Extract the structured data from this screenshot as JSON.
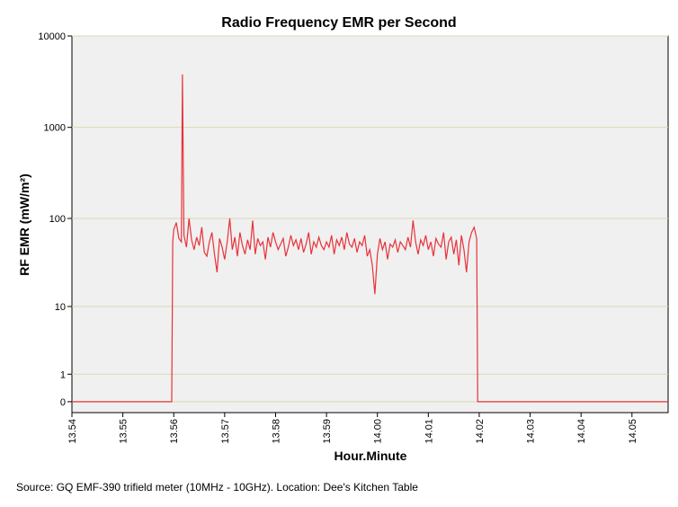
{
  "chart_data": {
    "type": "line",
    "title": "Radio Frequency EMR per Second",
    "x_label": "Hour.Minute",
    "y_label": "RF EMR (mW/m²)",
    "source": "Source: GQ EMF-390 trifield meter (10MHz - 10GHz). Location: Dee's Kitchen Table",
    "yscale": "log1p",
    "grid": true,
    "xlim": [
      834,
      845.71
    ],
    "ylim": [
      -0.24,
      10000
    ],
    "xticks": [
      {
        "value": 834,
        "label": "13.54"
      },
      {
        "value": 835,
        "label": "13.55"
      },
      {
        "value": 836,
        "label": "13.56"
      },
      {
        "value": 837,
        "label": "13.57"
      },
      {
        "value": 838,
        "label": "13.58"
      },
      {
        "value": 839,
        "label": "13.59"
      },
      {
        "value": 840,
        "label": "14.00"
      },
      {
        "value": 841,
        "label": "14.01"
      },
      {
        "value": 842,
        "label": "14.02"
      },
      {
        "value": 843,
        "label": "14.03"
      },
      {
        "value": 844,
        "label": "14.04"
      },
      {
        "value": 845,
        "label": "14.05"
      }
    ],
    "yticks": [
      0,
      1,
      10,
      100,
      1000,
      10000
    ],
    "series": [
      {
        "name": "RF EMR",
        "color": "#e8323a",
        "x": [
          834,
          835.96,
          835.98,
          836,
          836.05,
          836.1,
          836.15,
          836.17,
          836.2,
          836.25,
          836.3,
          836.35,
          836.4,
          836.45,
          836.5,
          836.55,
          836.6,
          836.65,
          836.7,
          836.75,
          836.8,
          836.85,
          836.9,
          836.95,
          837,
          837.05,
          837.1,
          837.15,
          837.2,
          837.25,
          837.3,
          837.35,
          837.4,
          837.45,
          837.5,
          837.55,
          837.6,
          837.65,
          837.7,
          837.75,
          837.8,
          837.85,
          837.9,
          837.95,
          838,
          838.05,
          838.1,
          838.15,
          838.2,
          838.25,
          838.3,
          838.35,
          838.4,
          838.45,
          838.5,
          838.55,
          838.6,
          838.65,
          838.7,
          838.75,
          838.8,
          838.85,
          838.9,
          838.95,
          839,
          839.05,
          839.1,
          839.15,
          839.2,
          839.25,
          839.3,
          839.35,
          839.4,
          839.45,
          839.5,
          839.55,
          839.6,
          839.65,
          839.7,
          839.75,
          839.8,
          839.85,
          839.9,
          839.95,
          840,
          840.05,
          840.1,
          840.15,
          840.2,
          840.25,
          840.3,
          840.35,
          840.4,
          840.45,
          840.5,
          840.55,
          840.6,
          840.65,
          840.7,
          840.75,
          840.8,
          840.85,
          840.9,
          840.95,
          841,
          841.05,
          841.1,
          841.15,
          841.2,
          841.25,
          841.3,
          841.35,
          841.4,
          841.45,
          841.5,
          841.55,
          841.6,
          841.65,
          841.7,
          841.75,
          841.8,
          841.85,
          841.9,
          841.95,
          841.97,
          845.71
        ],
        "values": [
          0,
          0,
          55,
          75,
          90,
          60,
          55,
          3800,
          65,
          48,
          100,
          58,
          45,
          62,
          50,
          80,
          42,
          38,
          55,
          70,
          40,
          25,
          60,
          48,
          35,
          55,
          100,
          45,
          62,
          38,
          70,
          50,
          40,
          58,
          45,
          95,
          40,
          60,
          50,
          55,
          35,
          62,
          48,
          70,
          55,
          45,
          52,
          60,
          38,
          48,
          65,
          50,
          58,
          45,
          60,
          42,
          52,
          70,
          40,
          55,
          48,
          62,
          50,
          45,
          55,
          48,
          65,
          40,
          58,
          50,
          62,
          45,
          70,
          52,
          48,
          60,
          42,
          55,
          50,
          65,
          38,
          45,
          30,
          14,
          40,
          60,
          45,
          55,
          35,
          52,
          48,
          58,
          42,
          55,
          50,
          45,
          62,
          48,
          95,
          55,
          40,
          58,
          50,
          65,
          45,
          55,
          38,
          60,
          52,
          48,
          70,
          35,
          55,
          62,
          40,
          58,
          30,
          65,
          45,
          25,
          55,
          70,
          80,
          60,
          0,
          0
        ]
      }
    ]
  }
}
